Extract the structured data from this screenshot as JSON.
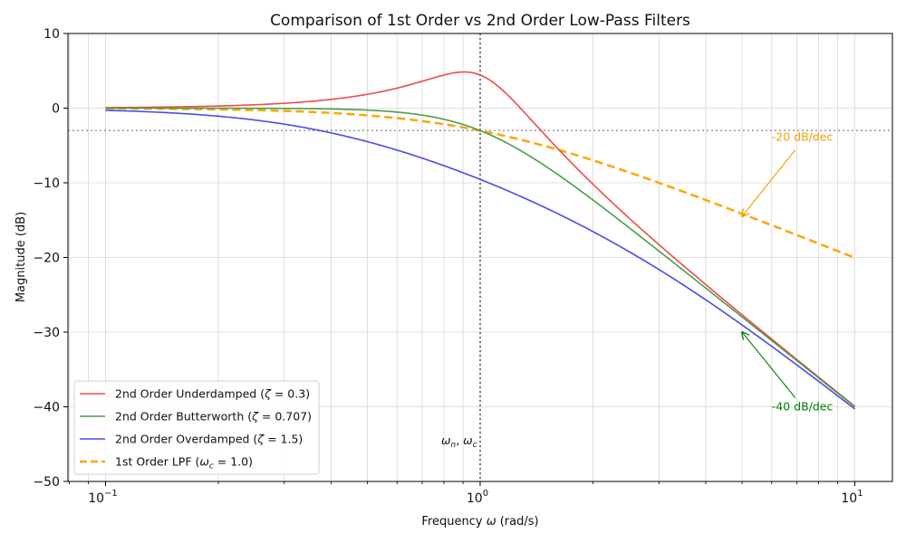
{
  "chart_data": {
    "type": "line",
    "title": "Comparison of 1st Order vs 2nd Order Low-Pass Filters",
    "xlabel": "Frequency ω (rad/s)",
    "ylabel": "Magnitude (dB)",
    "xscale": "log",
    "xlim": [
      0.08,
      12.5
    ],
    "ylim": [
      -50,
      10
    ],
    "xticks": [
      {
        "value": 0.1,
        "label": "10",
        "exp": "−1"
      },
      {
        "value": 1,
        "label": "10",
        "exp": "0"
      },
      {
        "value": 10,
        "label": "10",
        "exp": "1"
      }
    ],
    "yticks": [
      10,
      0,
      -10,
      -20,
      -30,
      -40,
      -50
    ],
    "ytick_labels": [
      "10",
      "0",
      "−10",
      "−20",
      "−30",
      "−40",
      "−50"
    ],
    "grid": true,
    "legend_position": "lower left",
    "x": [
      0.1,
      0.2,
      0.5,
      0.9,
      1.0,
      2.0,
      5.0,
      10.0
    ],
    "series": [
      {
        "name": "2nd Order Underdamped (ζ = 0.3)",
        "kind": "second_order",
        "zeta": 0.3,
        "color": "#f04a4a",
        "style": "solid",
        "values": [
          0.07,
          0.29,
          2.03,
          4.66,
          4.44,
          -9.96,
          -27.7,
          -39.9
        ]
      },
      {
        "name": "2nd Order Butterworth (ζ = 0.707)",
        "kind": "second_order",
        "zeta": 0.707,
        "color": "#4a9e4a",
        "style": "solid",
        "values": [
          0.0,
          -0.01,
          -0.26,
          -1.9,
          -3.01,
          -12.3,
          -28.0,
          -40.0
        ]
      },
      {
        "name": "2nd Order Overdamped (ζ = 1.5)",
        "kind": "second_order",
        "zeta": 1.5,
        "color": "#4a4aee",
        "style": "solid",
        "values": [
          -0.34,
          -1.26,
          -4.9,
          -8.6,
          -9.54,
          -16.9,
          -29.4,
          -40.4
        ]
      },
      {
        "name": "1st Order LPF (ω_c = 1.0)",
        "kind": "first_order",
        "wc": 1.0,
        "color": "#ffa500",
        "style": "dashed",
        "values": [
          -0.04,
          -0.17,
          -0.97,
          -2.6,
          -3.01,
          -6.99,
          -14.15,
          -20.04
        ]
      }
    ],
    "reference_lines": [
      {
        "type": "vertical",
        "x": 1.0,
        "style": "dotted",
        "color": "#555555"
      },
      {
        "type": "horizontal",
        "y": -3,
        "style": "dotted",
        "color": "#999999"
      }
    ],
    "annotations": [
      {
        "text": "-20 dB/dec",
        "color": "#f5a000",
        "text_at": [
          6.0,
          -4.5
        ],
        "arrow_to": [
          5.0,
          -14.5
        ]
      },
      {
        "text": "-40 dB/dec",
        "color": "#008000",
        "text_at": [
          6.0,
          -40.0
        ],
        "arrow_to": [
          5.0,
          -30.0
        ]
      },
      {
        "text": "ω_n, ω_c",
        "color": "#111111",
        "text_at": [
          0.95,
          -44.5
        ]
      }
    ]
  },
  "legend": {
    "items": [
      {
        "prefix": "2nd Order Underdamped (",
        "sym": "ζ",
        "sub": "",
        "suffix": " = 0.3)"
      },
      {
        "prefix": "2nd Order Butterworth (",
        "sym": "ζ",
        "sub": "",
        "suffix": " = 0.707)"
      },
      {
        "prefix": "2nd Order Overdamped (",
        "sym": "ζ",
        "sub": "",
        "suffix": " = 1.5)"
      },
      {
        "prefix": "1st Order LPF (",
        "sym": "ω",
        "sub": "c",
        "suffix": " = 1.0)"
      }
    ]
  },
  "labels": {
    "xlabel_prefix": "Frequency ",
    "xlabel_sym": "ω",
    "xlabel_suffix": " (rad/s)",
    "wn_label_1": "ω",
    "wn_sub_1": "n",
    "wn_sep": ", ",
    "wn_label_2": "ω",
    "wn_sub_2": "c"
  }
}
